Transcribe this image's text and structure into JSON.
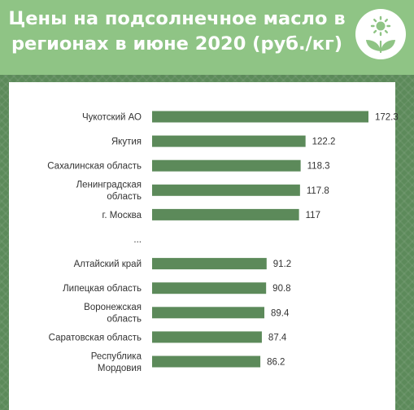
{
  "header": {
    "title": "Цены на подсолнечное масло в регионах в июне 2020 (руб./кг)",
    "logo_icon": "sun-with-leaves-icon"
  },
  "colors": {
    "header_bg": "#8fc485",
    "background": "#5c8a5a",
    "bar": "#5c8a5a",
    "panel": "#ffffff",
    "text": "#333333"
  },
  "chart_data": {
    "type": "bar",
    "orientation": "horizontal",
    "title": "Цены на подсолнечное масло в регионах в июне 2020 (руб./кг)",
    "xlabel": "",
    "ylabel": "",
    "grid": false,
    "legend": "none",
    "xlim": [
      0,
      172.3
    ],
    "categories": [
      [
        "Чукотский АО"
      ],
      [
        "Якутия"
      ],
      [
        "Сахалинская область"
      ],
      [
        "Ленинградская",
        "область"
      ],
      [
        "г. Москва"
      ],
      [
        "..."
      ],
      [
        "Алтайский край"
      ],
      [
        "Липецкая область"
      ],
      [
        "Воронежская",
        "область"
      ],
      [
        "Саратовская область"
      ],
      [
        "Республика",
        "Мордовия"
      ]
    ],
    "values": [
      172.3,
      122.2,
      118.3,
      117.8,
      117,
      null,
      91.2,
      90.8,
      89.4,
      87.4,
      86.2
    ],
    "value_labels": [
      "172.3",
      "122.2",
      "118.3",
      "117.8",
      "117",
      "",
      "91.2",
      "90.8",
      "89.4",
      "87.4",
      "86.2"
    ]
  }
}
